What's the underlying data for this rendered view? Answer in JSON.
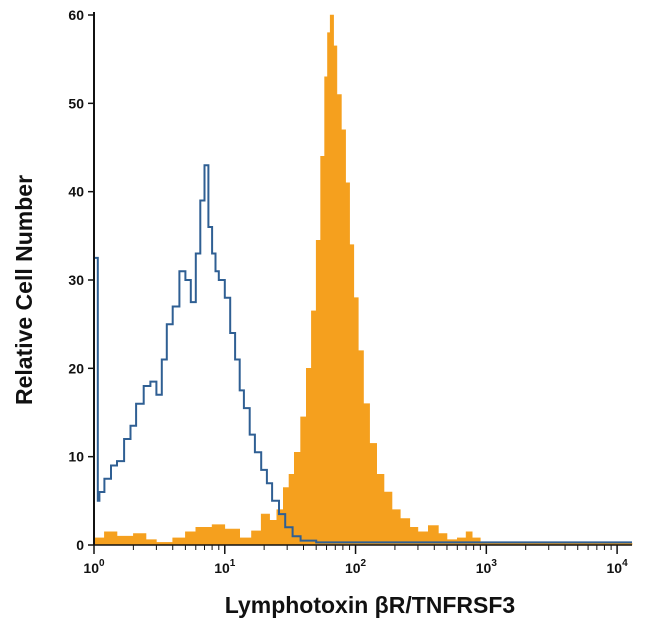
{
  "chart_data": {
    "type": "area",
    "xlabel": "Lymphotoxin βR/TNFRSF3",
    "ylabel": "Relative Cell Number",
    "x_scale": "log",
    "xlim": [
      1,
      13000
    ],
    "ylim": [
      0,
      60
    ],
    "y_ticks": [
      0,
      10,
      20,
      30,
      40,
      50,
      60
    ],
    "x_ticks": [
      {
        "base": "10",
        "exp": "0"
      },
      {
        "base": "10",
        "exp": "1"
      },
      {
        "base": "10",
        "exp": "2"
      },
      {
        "base": "10",
        "exp": "3"
      },
      {
        "base": "10",
        "exp": "4"
      }
    ],
    "grid": false,
    "legend": "none",
    "series": [
      {
        "style": "filled",
        "color": "#F5A01E",
        "x": [
          1.0,
          1.2,
          1.5,
          2.0,
          2.5,
          3.0,
          4.0,
          5.0,
          6.0,
          8.0,
          10.0,
          13.0,
          16.0,
          19.0,
          22.0,
          25.0,
          28.0,
          31.0,
          34.0,
          38.0,
          42.0,
          46.0,
          50.0,
          54.0,
          58.0,
          61.0,
          64.0,
          68.0,
          72.0,
          78.0,
          84.0,
          90.0,
          97.0,
          105.0,
          115.0,
          128.0,
          145.0,
          165.0,
          190.0,
          220.0,
          260.0,
          300.0,
          360.0,
          430.0,
          500.0,
          600.0,
          700.0,
          780.0,
          900.0,
          1200.0,
          2000.0,
          5000.0,
          13000.0
        ],
        "values": [
          0.8,
          1.5,
          1.0,
          1.3,
          0.6,
          0.3,
          0.8,
          1.5,
          2.0,
          2.3,
          1.8,
          0.8,
          1.6,
          3.5,
          2.8,
          4.0,
          6.5,
          8.0,
          10.5,
          14.5,
          20.0,
          26.5,
          34.5,
          44.0,
          53.0,
          58.0,
          60.0,
          56.5,
          51.0,
          47.0,
          41.0,
          34.0,
          28.0,
          22.0,
          16.0,
          11.5,
          8.0,
          6.0,
          4.0,
          3.0,
          2.0,
          1.5,
          2.2,
          1.3,
          0.6,
          0.8,
          1.5,
          0.8,
          0.3,
          0.2,
          0.2,
          0.2,
          0.2
        ]
      },
      {
        "style": "outline",
        "color": "#2F5F93",
        "x": [
          1.0,
          1.07,
          1.1,
          1.2,
          1.35,
          1.5,
          1.7,
          1.9,
          2.1,
          2.4,
          2.7,
          3.0,
          3.3,
          3.6,
          4.0,
          4.5,
          5.0,
          5.5,
          6.0,
          6.5,
          7.0,
          7.5,
          8.0,
          8.5,
          9.0,
          10.0,
          11.0,
          12.0,
          13.0,
          14.0,
          15.5,
          17.0,
          19.0,
          21.0,
          23.0,
          26.0,
          29.0,
          33.0,
          38.0,
          50.0,
          80.0,
          200.0,
          1000.0,
          13000.0
        ],
        "values": [
          32.5,
          5.0,
          6.0,
          7.5,
          9.0,
          9.5,
          12.0,
          13.5,
          16.0,
          18.0,
          18.5,
          17.0,
          21.0,
          25.0,
          27.0,
          31.0,
          30.0,
          27.5,
          33.0,
          39.0,
          43.0,
          36.0,
          33.0,
          31.0,
          30.0,
          28.0,
          24.0,
          21.0,
          17.5,
          15.5,
          12.5,
          10.5,
          8.5,
          7.0,
          5.0,
          3.5,
          2.0,
          1.0,
          0.5,
          0.3,
          0.3,
          0.3,
          0.3,
          0.3
        ]
      }
    ]
  }
}
